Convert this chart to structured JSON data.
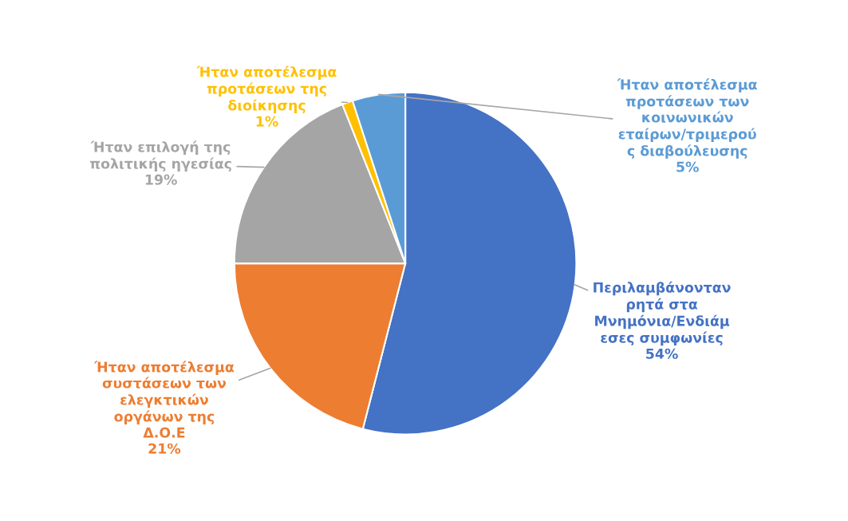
{
  "chart_data": {
    "type": "pie",
    "categories": [
      "Περιλαμβάνονταν\nρητά στα\nΜνημόνια/Ενδιάμ\nεσες συμφωνίες",
      "Ήταν αποτέλεσμα\nσυστάσεων των\nελεγκτικών\nοργάνων της\nΔ.Ο.Ε",
      "Ήταν επιλογή της\nπολιτικής ηγεσίας",
      "Ήταν αποτέλεσμα\nπροτάσεων της\nδιοίκησης",
      "Ήταν αποτέλεσμα\nπροτάσεων των\nκοινωνικών\nεταίρων/τριμερού\nς διαβούλευσης"
    ],
    "values": [
      54,
      21,
      19,
      1,
      5
    ],
    "value_labels": [
      "54%",
      "21%",
      "19%",
      "1%",
      "5%"
    ],
    "colors": [
      "#4472c4",
      "#ed7d31",
      "#a5a5a5",
      "#ffc000",
      "#5b9bd5"
    ]
  }
}
